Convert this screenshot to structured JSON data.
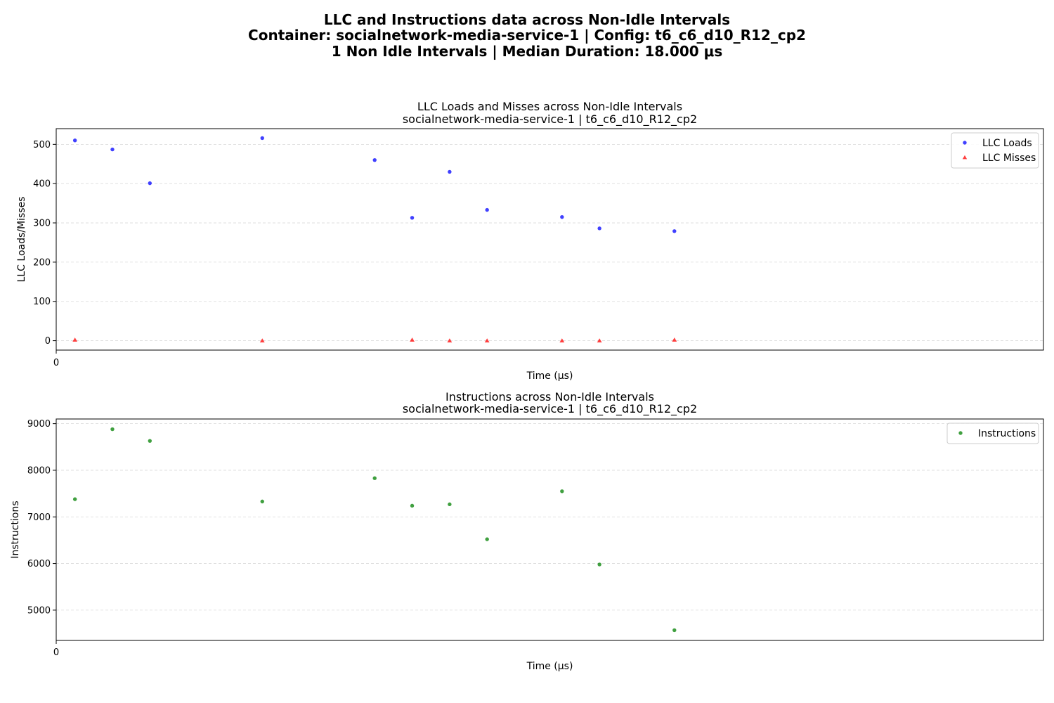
{
  "figure": {
    "title_lines": [
      "LLC and Instructions data across Non-Idle Intervals",
      "Container: socialnetwork-media-service-1 | Config: t6_c6_d10_R12_cp2",
      "1 Non Idle Intervals | Median Duration: 18.000 μs"
    ]
  },
  "colors": {
    "llc_loads": "#0000ff",
    "llc_misses": "#ff0000",
    "instructions": "#008000",
    "grid": "#d9d9d9"
  },
  "chart_data": [
    {
      "type": "scatter",
      "title_lines": [
        "LLC Loads and Misses across Non-Idle Intervals",
        "socialnetwork-media-service-1 | t6_c6_d10_R12_cp2"
      ],
      "xlabel": "Time (μs)",
      "ylabel": "LLC Loads/Misses",
      "xlim": [
        0,
        52.7
      ],
      "ylim": [
        -24,
        540
      ],
      "x_ticks": [
        0
      ],
      "y_ticks": [
        0,
        100,
        200,
        300,
        400,
        500
      ],
      "grid": "y-dashed",
      "legend_position": "top-right",
      "series": [
        {
          "name": "LLC Loads",
          "marker": "circle",
          "color": "#0000ff",
          "x": [
            1,
            3,
            5,
            11,
            17,
            19,
            21,
            23,
            27,
            29,
            33
          ],
          "y": [
            510,
            487,
            401,
            516,
            460,
            313,
            430,
            333,
            315,
            286,
            279
          ]
        },
        {
          "name": "LLC Misses",
          "marker": "triangle",
          "color": "#ff0000",
          "x": [
            1,
            11,
            19,
            21,
            23,
            27,
            29,
            33
          ],
          "y": [
            2,
            0,
            2,
            0,
            0,
            0,
            0,
            2
          ]
        }
      ]
    },
    {
      "type": "scatter",
      "title_lines": [
        "Instructions across Non-Idle Intervals",
        "socialnetwork-media-service-1 | t6_c6_d10_R12_cp2"
      ],
      "xlabel": "Time (μs)",
      "ylabel": "Instructions",
      "xlim": [
        0,
        52.7
      ],
      "ylim": [
        4350,
        9100
      ],
      "x_ticks": [
        0
      ],
      "y_ticks": [
        5000,
        6000,
        7000,
        8000,
        9000
      ],
      "grid": "y-dashed",
      "legend_position": "top-right",
      "series": [
        {
          "name": "Instructions",
          "marker": "circle",
          "color": "#008000",
          "x": [
            1,
            3,
            5,
            11,
            17,
            19,
            21,
            23,
            27,
            29,
            33
          ],
          "y": [
            7380,
            8880,
            8630,
            7330,
            7830,
            7240,
            7270,
            6520,
            7550,
            5980,
            4570
          ]
        }
      ]
    }
  ]
}
